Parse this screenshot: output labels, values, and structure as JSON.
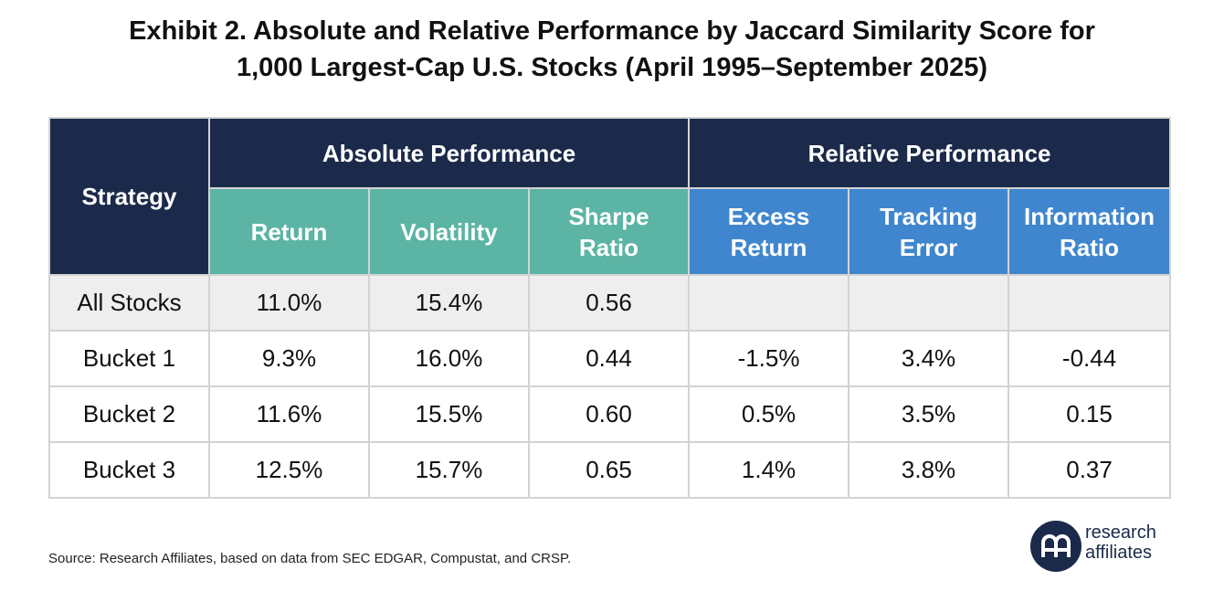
{
  "title_line1": "Exhibit 2. Absolute and Relative Performance by Jaccard Similarity Score for",
  "title_line2": "1,000 Largest-Cap U.S. Stocks (April 1995–September 2025)",
  "source": "Source: Research Affiliates, based on data from SEC EDGAR, Compustat, and CRSP.",
  "logo": {
    "line1": "research",
    "line2": "affiliates",
    "mark": "ᗩ"
  },
  "colors": {
    "navy": "#1b2a4a",
    "teal": "#5bb4a4",
    "blue": "#3f86cf",
    "shade": "#eeeeee"
  },
  "chart_data": {
    "type": "table",
    "header": {
      "strategy": "Strategy",
      "group_absolute": "Absolute Performance",
      "group_relative": "Relative Performance",
      "columns": [
        "Return",
        "Volatility",
        "Sharpe Ratio",
        "Excess Return",
        "Tracking Error",
        "Information Ratio"
      ]
    },
    "rows": [
      {
        "strategy": "All Stocks",
        "values": [
          "11.0%",
          "15.4%",
          "0.56",
          "",
          "",
          ""
        ]
      },
      {
        "strategy": "Bucket 1",
        "values": [
          "9.3%",
          "16.0%",
          "0.44",
          "-1.5%",
          "3.4%",
          "-0.44"
        ]
      },
      {
        "strategy": "Bucket 2",
        "values": [
          "11.6%",
          "15.5%",
          "0.60",
          "0.5%",
          "3.5%",
          "0.15"
        ]
      },
      {
        "strategy": "Bucket 3",
        "values": [
          "12.5%",
          "15.7%",
          "0.65",
          "1.4%",
          "3.8%",
          "0.37"
        ]
      }
    ]
  }
}
